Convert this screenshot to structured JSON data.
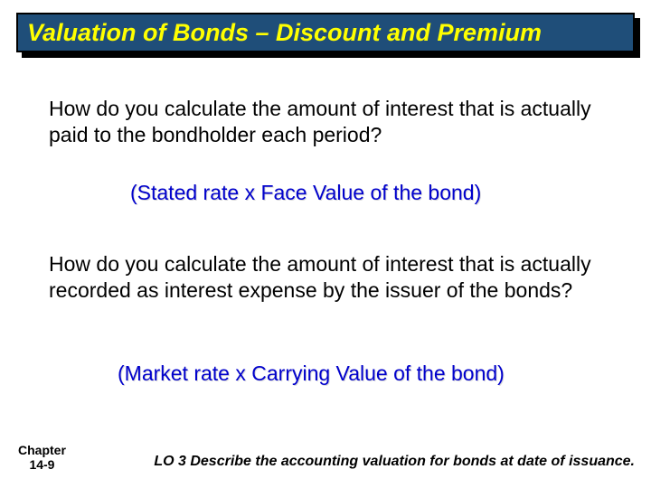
{
  "title": "Valuation of Bonds – Discount and Premium",
  "question1": "How do you calculate the amount of interest that is actually paid to the bondholder each period?",
  "answer1": "(Stated rate x Face Value of the bond)",
  "question2": "How do you calculate the amount of interest that is actually recorded as interest expense by the issuer of the bonds?",
  "answer2": "(Market rate x Carrying Value of the bond)",
  "chapter_label_line1": "Chapter",
  "chapter_label_line2": "14-9",
  "learning_objective": "LO 3 Describe the accounting valuation for bonds at date of issuance.",
  "colors": {
    "title_bg": "#1f4e79",
    "title_text": "#ffff00",
    "answer_text": "#0000cc",
    "body_text": "#000000",
    "background": "#ffffff"
  },
  "fonts": {
    "family": "Comic Sans MS",
    "title_size_pt": 20,
    "body_size_pt": 17,
    "footer_size_pt": 12
  }
}
